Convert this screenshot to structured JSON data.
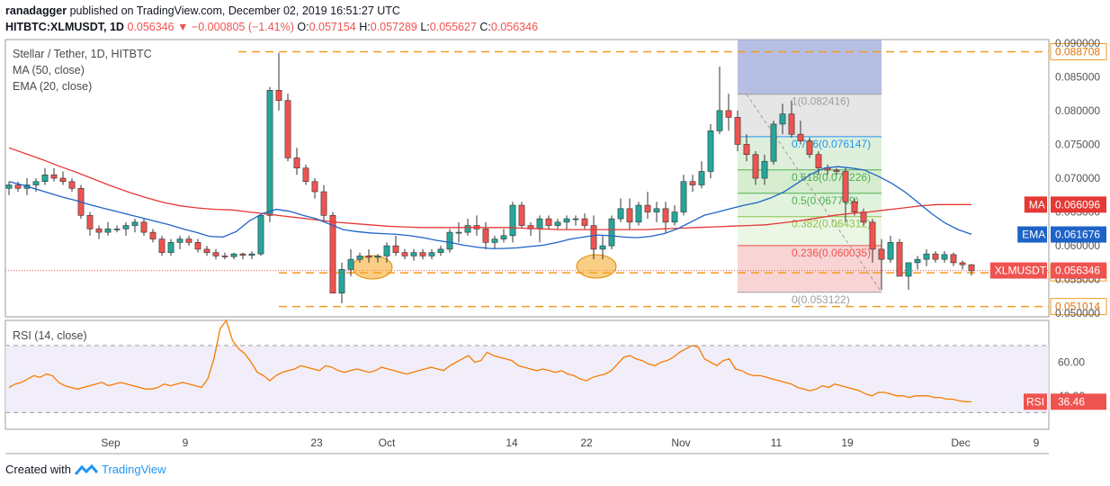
{
  "header": {
    "author": "ranadagger",
    "published_text": "published on TradingView.com, December 02, 2019 16:51:27 UTC",
    "symbol": "HITBTC:XLMUSDT, 1D",
    "last": "0.056346",
    "change_arrow": "▼",
    "change": "−0.000805 (−1.41%)",
    "o_label": "O:",
    "o": "0.057154",
    "h_label": "H:",
    "h": "0.057289",
    "l_label": "L:",
    "l": "0.055627",
    "c_label": "C:",
    "c": "0.056346"
  },
  "legend": {
    "title": "Stellar / Tether, 1D, HITBTC",
    "ma": "MA (50, close)",
    "ema": "EMA (20, close)",
    "rsi": "RSI (14, close)"
  },
  "footer": {
    "created_with": "Created with",
    "brand": "TradingView"
  },
  "colors": {
    "up": "#26a69a",
    "down": "#ef5350",
    "ma": "#e53935",
    "ema": "#1e63c8",
    "rsi": "#f57c00",
    "level": "#f59a23",
    "fib_top": "#9fa8da",
    "fib_mid": "#e0e0e0"
  },
  "chart_data": {
    "type": "candlestick",
    "title": "Stellar / Tether, 1D, HITBTC",
    "x_tick_labels": [
      "Sep",
      "9",
      "23",
      "Oct",
      "14",
      "22",
      "Nov",
      "11",
      "19",
      "Dec",
      "9"
    ],
    "y_tick_labels": [
      "0.090000",
      "0.085000",
      "0.080000",
      "0.075000",
      "0.070000",
      "0.065000",
      "0.060000",
      "0.055000",
      "0.050000"
    ],
    "ylim": [
      0.0495,
      0.0905
    ],
    "candles_ohlc": [
      [
        0.0685,
        0.0695,
        0.0675,
        0.069
      ],
      [
        0.069,
        0.0695,
        0.068,
        0.0685
      ],
      [
        0.0685,
        0.07,
        0.0675,
        0.069
      ],
      [
        0.069,
        0.07,
        0.068,
        0.0695
      ],
      [
        0.0695,
        0.0715,
        0.069,
        0.0705
      ],
      [
        0.0705,
        0.0715,
        0.0695,
        0.07
      ],
      [
        0.07,
        0.071,
        0.069,
        0.0695
      ],
      [
        0.0695,
        0.07,
        0.068,
        0.0685
      ],
      [
        0.0685,
        0.069,
        0.064,
        0.0645
      ],
      [
        0.0645,
        0.065,
        0.0615,
        0.0625
      ],
      [
        0.0625,
        0.063,
        0.061,
        0.062
      ],
      [
        0.062,
        0.0635,
        0.0615,
        0.0625
      ],
      [
        0.0625,
        0.063,
        0.062,
        0.0625
      ],
      [
        0.0625,
        0.0635,
        0.0615,
        0.063
      ],
      [
        0.063,
        0.064,
        0.062,
        0.0635
      ],
      [
        0.0635,
        0.064,
        0.0615,
        0.062
      ],
      [
        0.062,
        0.0625,
        0.0605,
        0.061
      ],
      [
        0.061,
        0.0615,
        0.0585,
        0.059
      ],
      [
        0.059,
        0.061,
        0.0585,
        0.0605
      ],
      [
        0.0605,
        0.0615,
        0.0595,
        0.061
      ],
      [
        0.061,
        0.0615,
        0.06,
        0.0605
      ],
      [
        0.0605,
        0.061,
        0.059,
        0.0595
      ],
      [
        0.0595,
        0.06,
        0.0585,
        0.059
      ],
      [
        0.059,
        0.0595,
        0.058,
        0.0585
      ],
      [
        0.0585,
        0.059,
        0.058,
        0.0584
      ],
      [
        0.0584,
        0.059,
        0.058,
        0.0588
      ],
      [
        0.0588,
        0.059,
        0.058,
        0.0586
      ],
      [
        0.0586,
        0.0592,
        0.058,
        0.0588
      ],
      [
        0.0588,
        0.0615,
        0.0585,
        0.0645
      ],
      [
        0.0645,
        0.0835,
        0.0635,
        0.083
      ],
      [
        0.083,
        0.0885,
        0.08,
        0.0815
      ],
      [
        0.0815,
        0.0825,
        0.0725,
        0.073
      ],
      [
        0.073,
        0.0745,
        0.0705,
        0.0715
      ],
      [
        0.0715,
        0.072,
        0.069,
        0.0695
      ],
      [
        0.0695,
        0.07,
        0.067,
        0.068
      ],
      [
        0.068,
        0.069,
        0.0635,
        0.0645
      ],
      [
        0.0645,
        0.065,
        0.0545,
        0.053
      ],
      [
        0.053,
        0.0575,
        0.0515,
        0.0565
      ],
      [
        0.0565,
        0.0595,
        0.0555,
        0.058
      ],
      [
        0.058,
        0.059,
        0.0575,
        0.0585
      ],
      [
        0.0585,
        0.0595,
        0.0575,
        0.0583
      ],
      [
        0.0583,
        0.0588,
        0.0575,
        0.0585
      ],
      [
        0.0585,
        0.0605,
        0.0575,
        0.06
      ],
      [
        0.06,
        0.0615,
        0.0585,
        0.059
      ],
      [
        0.059,
        0.0595,
        0.058,
        0.0585
      ],
      [
        0.0585,
        0.0595,
        0.0578,
        0.059
      ],
      [
        0.059,
        0.0595,
        0.058,
        0.0585
      ],
      [
        0.0585,
        0.0595,
        0.058,
        0.059
      ],
      [
        0.059,
        0.06,
        0.0585,
        0.0595
      ],
      [
        0.0595,
        0.0625,
        0.059,
        0.062
      ],
      [
        0.062,
        0.0635,
        0.0605,
        0.062
      ],
      [
        0.062,
        0.064,
        0.0615,
        0.063
      ],
      [
        0.063,
        0.0645,
        0.0615,
        0.0625
      ],
      [
        0.0625,
        0.0635,
        0.0595,
        0.0605
      ],
      [
        0.0605,
        0.0615,
        0.0595,
        0.061
      ],
      [
        0.061,
        0.0625,
        0.0605,
        0.0615
      ],
      [
        0.0615,
        0.0665,
        0.0605,
        0.066
      ],
      [
        0.066,
        0.0665,
        0.0625,
        0.063
      ],
      [
        0.063,
        0.0635,
        0.0615,
        0.0625
      ],
      [
        0.0625,
        0.0645,
        0.0605,
        0.064
      ],
      [
        0.064,
        0.0645,
        0.0625,
        0.063
      ],
      [
        0.063,
        0.064,
        0.0625,
        0.0635
      ],
      [
        0.0635,
        0.0645,
        0.0625,
        0.064
      ],
      [
        0.064,
        0.0645,
        0.063,
        0.064
      ],
      [
        0.064,
        0.0648,
        0.0625,
        0.063
      ],
      [
        0.063,
        0.0645,
        0.058,
        0.0595
      ],
      [
        0.0595,
        0.0615,
        0.058,
        0.06
      ],
      [
        0.06,
        0.0645,
        0.0595,
        0.064
      ],
      [
        0.064,
        0.067,
        0.0635,
        0.0655
      ],
      [
        0.0655,
        0.067,
        0.0625,
        0.0635
      ],
      [
        0.0635,
        0.0665,
        0.063,
        0.066
      ],
      [
        0.066,
        0.068,
        0.064,
        0.065
      ],
      [
        0.065,
        0.0665,
        0.0635,
        0.0655
      ],
      [
        0.0655,
        0.0665,
        0.062,
        0.0635
      ],
      [
        0.0635,
        0.066,
        0.063,
        0.065
      ],
      [
        0.065,
        0.0705,
        0.0645,
        0.0695
      ],
      [
        0.0695,
        0.0705,
        0.068,
        0.069
      ],
      [
        0.069,
        0.0725,
        0.0685,
        0.071
      ],
      [
        0.071,
        0.078,
        0.07,
        0.077
      ],
      [
        0.077,
        0.0865,
        0.0765,
        0.08
      ],
      [
        0.08,
        0.0825,
        0.077,
        0.079
      ],
      [
        0.079,
        0.08,
        0.074,
        0.075
      ],
      [
        0.075,
        0.0765,
        0.0725,
        0.0735
      ],
      [
        0.0735,
        0.074,
        0.069,
        0.07
      ],
      [
        0.07,
        0.0735,
        0.069,
        0.0725
      ],
      [
        0.0725,
        0.0785,
        0.072,
        0.078
      ],
      [
        0.078,
        0.081,
        0.0765,
        0.0795
      ],
      [
        0.0795,
        0.0815,
        0.076,
        0.0765
      ],
      [
        0.0765,
        0.0785,
        0.075,
        0.0755
      ],
      [
        0.0755,
        0.076,
        0.073,
        0.0735
      ],
      [
        0.0735,
        0.074,
        0.0705,
        0.0715
      ],
      [
        0.0715,
        0.072,
        0.0705,
        0.0712
      ],
      [
        0.0712,
        0.0715,
        0.0705,
        0.071
      ],
      [
        0.071,
        0.0715,
        0.0635,
        0.0665
      ],
      [
        0.0665,
        0.067,
        0.0645,
        0.065
      ],
      [
        0.065,
        0.0655,
        0.063,
        0.0635
      ],
      [
        0.0635,
        0.064,
        0.0575,
        0.0595
      ],
      [
        0.0595,
        0.061,
        0.0535,
        0.058
      ],
      [
        0.058,
        0.0615,
        0.0575,
        0.0605
      ],
      [
        0.0605,
        0.061,
        0.0555,
        0.0555
      ],
      [
        0.0555,
        0.0575,
        0.0535,
        0.0575
      ],
      [
        0.0575,
        0.0585,
        0.0565,
        0.058
      ],
      [
        0.058,
        0.0595,
        0.057,
        0.0588
      ],
      [
        0.0588,
        0.0592,
        0.0575,
        0.058
      ],
      [
        0.058,
        0.0592,
        0.0575,
        0.0587
      ],
      [
        0.0587,
        0.059,
        0.057,
        0.0575
      ],
      [
        0.0575,
        0.0578,
        0.0565,
        0.0572
      ],
      [
        0.0572,
        0.0573,
        0.0556,
        0.0563
      ]
    ],
    "series": [
      {
        "name": "MA (50, close)",
        "values": [
          0.0745,
          0.0736,
          0.0727,
          0.0717,
          0.0708,
          0.0698,
          0.0688,
          0.0679,
          0.0671,
          0.0664,
          0.0659,
          0.0656,
          0.0654,
          0.0653,
          0.065,
          0.0647,
          0.0644,
          0.0641,
          0.0638,
          0.0635,
          0.0633,
          0.0631,
          0.0629,
          0.0628,
          0.0627,
          0.0627,
          0.0627,
          0.0627,
          0.0627,
          0.0627,
          0.0626,
          0.0625,
          0.0624,
          0.0624,
          0.0624,
          0.0624,
          0.0624,
          0.0624,
          0.0625,
          0.0626,
          0.0627,
          0.0628,
          0.0629,
          0.063,
          0.0631,
          0.0634,
          0.0637,
          0.0641,
          0.0645,
          0.0648,
          0.065,
          0.0653,
          0.0656,
          0.0659,
          0.0661,
          0.0661,
          0.0661
        ]
      },
      {
        "name": "EMA (20, close)",
        "values": [
          0.0695,
          0.069,
          0.0684,
          0.0678,
          0.0672,
          0.0667,
          0.0661,
          0.0656,
          0.0651,
          0.0646,
          0.0641,
          0.0636,
          0.0631,
          0.0625,
          0.062,
          0.0614,
          0.0613,
          0.0621,
          0.0637,
          0.0648,
          0.0654,
          0.0651,
          0.0645,
          0.064,
          0.0632,
          0.0624,
          0.0621,
          0.0619,
          0.0618,
          0.0617,
          0.0615,
          0.0612,
          0.0608,
          0.0605,
          0.0601,
          0.0598,
          0.0596,
          0.0596,
          0.0597,
          0.0599,
          0.0601,
          0.0605,
          0.061,
          0.0613,
          0.0616,
          0.0615,
          0.0613,
          0.0612,
          0.0614,
          0.0618,
          0.0625,
          0.0635,
          0.0645,
          0.065,
          0.0655,
          0.066,
          0.0664,
          0.0671,
          0.068,
          0.0693,
          0.0706,
          0.0715,
          0.0717,
          0.0715,
          0.0712,
          0.0703,
          0.0693,
          0.068,
          0.0664,
          0.0648,
          0.0634,
          0.0624,
          0.0617
        ]
      },
      {
        "name": "RSI (14, close)",
        "values": [
          45,
          47,
          48,
          50,
          52,
          51,
          53,
          52,
          48,
          46,
          45,
          44,
          45,
          46,
          47,
          48,
          46,
          47,
          48,
          47,
          46,
          45,
          44,
          44,
          45,
          47,
          46,
          47,
          48,
          47,
          46,
          45,
          50,
          62,
          80,
          85,
          73,
          68,
          65,
          60,
          54,
          52,
          49,
          52,
          54,
          55,
          56,
          58,
          57,
          56,
          55,
          58,
          57,
          55,
          54,
          55,
          56,
          55,
          54,
          55,
          57,
          56,
          55,
          54,
          53,
          54,
          55,
          56,
          57,
          56,
          55,
          58,
          60,
          62,
          64,
          60,
          61,
          66,
          64,
          63,
          62,
          61,
          58,
          57,
          56,
          55,
          56,
          55,
          54,
          55,
          53,
          52,
          50,
          49,
          51,
          52,
          53,
          55,
          59,
          63,
          64,
          62,
          61,
          59,
          58,
          60,
          61,
          63,
          66,
          68,
          70,
          69,
          62,
          60,
          58,
          61,
          62,
          56,
          55,
          53,
          52,
          52,
          51,
          50,
          49,
          48,
          47,
          45,
          44,
          43,
          44,
          46,
          45,
          47,
          46,
          45,
          44,
          43,
          41,
          40,
          42,
          42,
          41,
          40,
          40,
          39,
          40,
          40,
          40,
          39,
          39,
          38,
          38,
          37,
          36.5,
          36.46
        ]
      }
    ],
    "price_levels": [
      {
        "label": "0.088708",
        "value": 0.088708
      },
      {
        "label": "0.056000",
        "value": 0.056
      },
      {
        "label": "0.051014",
        "value": 0.051014
      }
    ],
    "price_badges": [
      {
        "label": "MA",
        "value": "0.066096",
        "y": 0.066096
      },
      {
        "label": "EMA",
        "value": "0.061676",
        "y": 0.061676
      },
      {
        "label": "XLMUSDT",
        "value": "0.056346",
        "y": 0.056346
      }
    ],
    "fibonacci": [
      {
        "label": "1(0.082416)",
        "value": 0.082416
      },
      {
        "label": "0.786(0.076147)",
        "value": 0.076147
      },
      {
        "label": "0.618(0.071226)",
        "value": 0.071226
      },
      {
        "label": "0.5(0.067769)",
        "value": 0.067769
      },
      {
        "label": "0.382(0.064312)",
        "value": 0.064312
      },
      {
        "label": "0.236(0.060035)",
        "value": 0.060035
      },
      {
        "label": "0(0.053122)",
        "value": 0.053122
      }
    ],
    "rsi_panel": {
      "y_tick_labels": [
        "60.00",
        "40.00"
      ],
      "ylim": [
        20,
        85
      ],
      "band": [
        30,
        70
      ],
      "current_label": "RSI",
      "current_value": "36.46"
    }
  }
}
